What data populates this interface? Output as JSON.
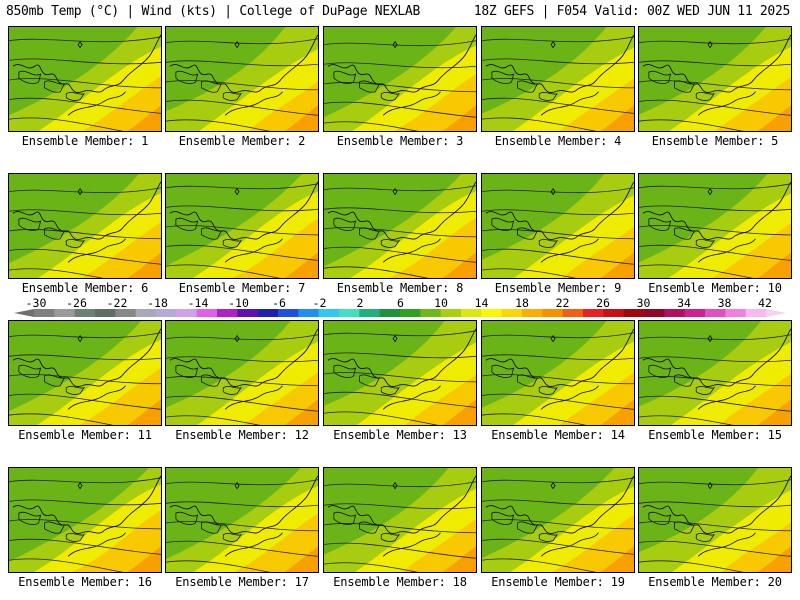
{
  "header": {
    "left": "850mb Temp (°C) | Wind (kts) | College of DuPage NEXLAB",
    "right": "18Z GEFS | F054 Valid: 00Z WED JUN 11 2025"
  },
  "members": [
    {
      "label": "Ensemble Member: 1",
      "warm": 0.5
    },
    {
      "label": "Ensemble Member: 2",
      "warm": 0.62
    },
    {
      "label": "Ensemble Member: 3",
      "warm": 0.45
    },
    {
      "label": "Ensemble Member: 4",
      "warm": 0.55
    },
    {
      "label": "Ensemble Member: 5",
      "warm": 0.52
    },
    {
      "label": "Ensemble Member: 6",
      "warm": 0.48
    },
    {
      "label": "Ensemble Member: 7",
      "warm": 0.4
    },
    {
      "label": "Ensemble Member: 8",
      "warm": 0.38
    },
    {
      "label": "Ensemble Member: 9",
      "warm": 0.58
    },
    {
      "label": "Ensemble Member: 10",
      "warm": 0.5
    },
    {
      "label": "Ensemble Member: 11",
      "warm": 0.45
    },
    {
      "label": "Ensemble Member: 12",
      "warm": 0.55
    },
    {
      "label": "Ensemble Member: 13",
      "warm": 0.6
    },
    {
      "label": "Ensemble Member: 14",
      "warm": 0.55
    },
    {
      "label": "Ensemble Member: 15",
      "warm": 0.58
    },
    {
      "label": "Ensemble Member: 16",
      "warm": 0.35
    },
    {
      "label": "Ensemble Member: 17",
      "warm": 0.42
    },
    {
      "label": "Ensemble Member: 18",
      "warm": 0.55
    },
    {
      "label": "Ensemble Member: 19",
      "warm": 0.45
    },
    {
      "label": "Ensemble Member: 20",
      "warm": 0.62
    }
  ],
  "colorbar": {
    "ticks": [
      "-30",
      "-26",
      "-22",
      "-18",
      "-14",
      "-10",
      "-6",
      "-2",
      "2",
      "6",
      "10",
      "14",
      "18",
      "22",
      "26",
      "30",
      "34",
      "38",
      "42"
    ],
    "colors": [
      "#808080",
      "#9a9a9a",
      "#6e7f73",
      "#5f6f66",
      "#888888",
      "#a8a8b8",
      "#b8a8d8",
      "#d0a0e8",
      "#e060e8",
      "#b020c8",
      "#6010b0",
      "#2020b0",
      "#2050e0",
      "#2090f0",
      "#30c8f0",
      "#40e0c0",
      "#20b080",
      "#209040",
      "#30a020",
      "#70b818",
      "#a8d010",
      "#d8e810",
      "#f8f800",
      "#f8d800",
      "#f8b000",
      "#f89000",
      "#f06010",
      "#e82020",
      "#c81018",
      "#a00810",
      "#900828",
      "#b01060",
      "#d02090",
      "#e050c0",
      "#f080e0",
      "#f8b8f0"
    ]
  }
}
